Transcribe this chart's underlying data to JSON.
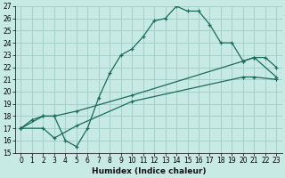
{
  "xlabel": "Humidex (Indice chaleur)",
  "background_color": "#c8eae4",
  "grid_color": "#a0cdc6",
  "line_color": "#1a6b5a",
  "xlim": [
    -0.5,
    23.5
  ],
  "ylim": [
    15,
    27
  ],
  "xticks": [
    0,
    1,
    2,
    3,
    4,
    5,
    6,
    7,
    8,
    9,
    10,
    11,
    12,
    13,
    14,
    15,
    16,
    17,
    18,
    19,
    20,
    21,
    22,
    23
  ],
  "yticks": [
    15,
    16,
    17,
    18,
    19,
    20,
    21,
    22,
    23,
    24,
    25,
    26,
    27
  ],
  "line1_x": [
    0,
    1,
    2,
    3,
    4,
    5,
    6,
    7,
    8,
    9,
    10,
    11,
    12,
    13,
    14,
    15,
    16,
    17,
    18,
    19,
    20,
    21,
    22,
    23
  ],
  "line1_y": [
    17,
    17.7,
    18,
    18,
    16,
    15.5,
    17,
    19.5,
    21.5,
    23,
    23.5,
    24.5,
    25.8,
    26.0,
    27.0,
    26.6,
    26.6,
    25.5,
    24.0,
    24.0,
    22.5,
    22.8,
    22.8,
    22.0
  ],
  "line2_x": [
    0,
    2,
    3,
    5,
    10,
    20,
    21,
    23
  ],
  "line2_y": [
    17,
    18,
    18,
    18.4,
    19.7,
    22.5,
    22.8,
    21.2
  ],
  "line3_x": [
    0,
    2,
    3,
    5,
    10,
    20,
    21,
    23
  ],
  "line3_y": [
    17,
    17.0,
    16.2,
    17.2,
    19.2,
    21.2,
    21.2,
    21.0
  ],
  "xlabel_fontsize": 6.5,
  "tick_fontsize": 5.5
}
